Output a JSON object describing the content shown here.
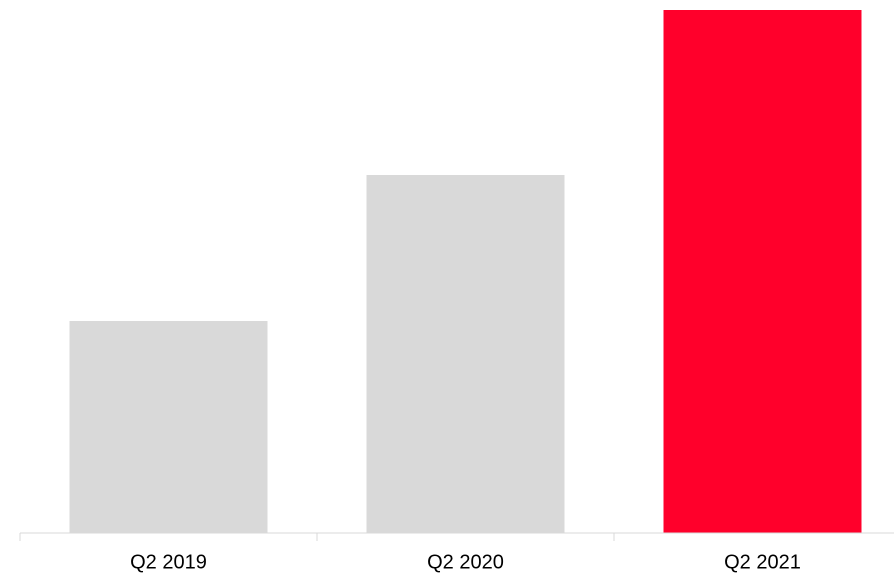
{
  "chart_data": {
    "type": "bar",
    "categories": [
      "Q2 2019",
      "Q2 2020",
      "Q2 2021"
    ],
    "values": [
      212,
      358,
      523
    ],
    "colors": [
      "#d9d9d9",
      "#d9d9d9",
      "#ff002b"
    ],
    "ylim": [
      0,
      525
    ]
  }
}
